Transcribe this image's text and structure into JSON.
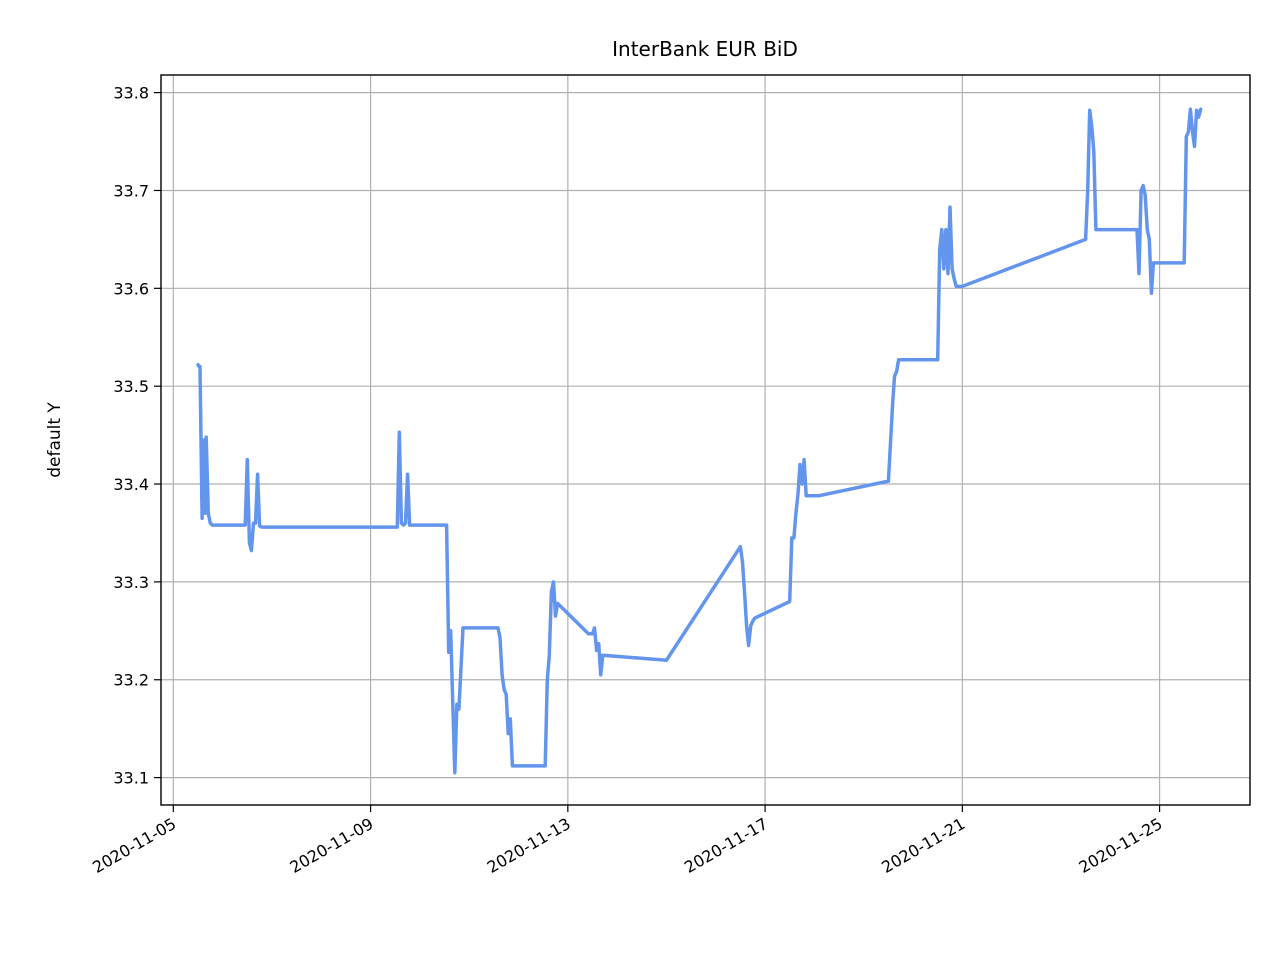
{
  "chart_data": {
    "type": "line",
    "title": "InterBank EUR  BiD",
    "xlabel": "",
    "ylabel": "default Y",
    "x_type": "date",
    "xlim": [
      "2020-11-04T18:00",
      "2020-11-26T20:00"
    ],
    "ylim": [
      33.072,
      33.818
    ],
    "x_ticks": [
      "2020-11-05",
      "2020-11-09",
      "2020-11-13",
      "2020-11-17",
      "2020-11-21",
      "2020-11-25"
    ],
    "y_ticks": [
      33.1,
      33.2,
      33.3,
      33.4,
      33.5,
      33.6,
      33.7,
      33.8
    ],
    "y_tick_labels": [
      "33.1",
      "33.2",
      "33.3",
      "33.4",
      "33.5",
      "33.6",
      "33.7",
      "33.8"
    ],
    "grid": true,
    "color": "#6495ed",
    "series": [
      {
        "x": [
          "2020-11-05T12:00",
          "2020-11-05T12:30",
          "2020-11-05T13:00",
          "2020-11-05T14:00",
          "2020-11-05T15:00",
          "2020-11-05T15:30",
          "2020-11-05T16:00",
          "2020-11-05T17:00",
          "2020-11-05T18:00",
          "2020-11-05T19:00",
          "2020-11-05T20:00",
          "2020-11-06T10:00",
          "2020-11-06T11:00",
          "2020-11-06T12:00",
          "2020-11-06T13:00",
          "2020-11-06T14:00",
          "2020-11-06T15:00",
          "2020-11-06T16:00",
          "2020-11-06T17:00",
          "2020-11-06T18:00",
          "2020-11-06T19:00",
          "2020-11-06T20:00",
          "2020-11-09T12:00",
          "2020-11-09T13:00",
          "2020-11-09T14:00",
          "2020-11-09T15:00",
          "2020-11-09T16:00",
          "2020-11-09T17:00",
          "2020-11-09T18:00",
          "2020-11-09T19:00",
          "2020-11-09T20:00",
          "2020-11-10T12:00",
          "2020-11-10T13:00",
          "2020-11-10T14:00",
          "2020-11-10T15:00",
          "2020-11-10T16:00",
          "2020-11-10T17:00",
          "2020-11-10T18:00",
          "2020-11-10T19:00",
          "2020-11-10T21:00",
          "2020-11-11T12:00",
          "2020-11-11T13:00",
          "2020-11-11T14:00",
          "2020-11-11T15:00",
          "2020-11-11T16:00",
          "2020-11-11T17:00",
          "2020-11-11T18:00",
          "2020-11-11T19:00",
          "2020-11-11T20:00",
          "2020-11-11T21:00",
          "2020-11-12T11:00",
          "2020-11-12T12:00",
          "2020-11-12T13:00",
          "2020-11-12T14:00",
          "2020-11-12T15:00",
          "2020-11-12T16:00",
          "2020-11-12T17:00",
          "2020-11-12T18:00",
          "2020-11-12T19:00",
          "2020-11-13T10:00",
          "2020-11-13T11:00",
          "2020-11-13T12:00",
          "2020-11-13T13:00",
          "2020-11-13T14:00",
          "2020-11-13T15:00",
          "2020-11-13T16:00",
          "2020-11-13T17:00",
          "2020-11-15T00:00",
          "2020-11-16T12:00",
          "2020-11-16T13:00",
          "2020-11-16T14:00",
          "2020-11-16T15:00",
          "2020-11-16T16:00",
          "2020-11-16T17:00",
          "2020-11-16T18:00",
          "2020-11-16T19:00",
          "2020-11-17T12:00",
          "2020-11-17T13:00",
          "2020-11-17T14:00",
          "2020-11-17T15:00",
          "2020-11-17T16:00",
          "2020-11-17T17:00",
          "2020-11-17T18:00",
          "2020-11-17T19:00",
          "2020-11-17T20:00",
          "2020-11-18T02:00",
          "2020-11-19T12:00",
          "2020-11-19T13:00",
          "2020-11-19T14:00",
          "2020-11-19T15:00",
          "2020-11-19T16:00",
          "2020-11-19T17:00",
          "2020-11-20T12:00",
          "2020-11-20T13:00",
          "2020-11-20T14:00",
          "2020-11-20T15:00",
          "2020-11-20T16:00",
          "2020-11-20T17:00",
          "2020-11-20T18:00",
          "2020-11-20T19:00",
          "2020-11-20T20:00",
          "2020-11-20T21:00",
          "2020-11-21T00:00",
          "2020-11-23T12:00",
          "2020-11-23T13:00",
          "2020-11-23T14:00",
          "2020-11-23T15:00",
          "2020-11-23T16:00",
          "2020-11-23T17:00",
          "2020-11-23T18:00",
          "2020-11-24T12:00",
          "2020-11-24T13:00",
          "2020-11-24T14:00",
          "2020-11-24T15:00",
          "2020-11-24T16:00",
          "2020-11-24T17:00",
          "2020-11-24T18:00",
          "2020-11-24T19:00",
          "2020-11-24T20:00",
          "2020-11-24T21:00",
          "2020-11-25T12:00",
          "2020-11-25T13:00",
          "2020-11-25T14:00",
          "2020-11-25T15:00",
          "2020-11-25T16:00",
          "2020-11-25T17:00",
          "2020-11-25T18:00",
          "2020-11-25T19:00",
          "2020-11-25T20:00"
        ],
        "y": [
          33.522,
          33.52,
          33.52,
          33.365,
          33.445,
          33.37,
          33.448,
          33.37,
          33.36,
          33.358,
          33.358,
          33.358,
          33.358,
          33.425,
          33.34,
          33.332,
          33.36,
          33.36,
          33.41,
          33.357,
          33.356,
          33.356,
          33.356,
          33.356,
          33.453,
          33.36,
          33.358,
          33.36,
          33.41,
          33.358,
          33.358,
          33.358,
          33.358,
          33.228,
          33.25,
          33.175,
          33.105,
          33.175,
          33.17,
          33.253,
          33.253,
          33.253,
          33.253,
          33.243,
          33.205,
          33.19,
          33.185,
          33.145,
          33.16,
          33.112,
          33.112,
          33.112,
          33.112,
          33.2,
          33.225,
          33.29,
          33.3,
          33.265,
          33.278,
          33.247,
          33.247,
          33.247,
          33.253,
          33.23,
          33.237,
          33.205,
          33.225,
          33.22,
          33.336,
          33.32,
          33.29,
          33.255,
          33.235,
          33.255,
          33.26,
          33.263,
          33.28,
          33.345,
          33.345,
          33.37,
          33.39,
          33.42,
          33.4,
          33.425,
          33.388,
          33.388,
          33.403,
          33.44,
          33.48,
          33.51,
          33.515,
          33.527,
          33.527,
          33.64,
          33.66,
          33.62,
          33.66,
          33.615,
          33.683,
          33.62,
          33.61,
          33.602,
          33.602,
          33.65,
          33.7,
          33.782,
          33.765,
          33.74,
          33.66,
          33.66,
          33.66,
          33.66,
          33.615,
          33.7,
          33.705,
          33.695,
          33.66,
          33.65,
          33.595,
          33.626,
          33.626,
          33.755,
          33.76,
          33.783,
          33.76,
          33.745,
          33.782,
          33.775,
          33.783
        ]
      }
    ]
  }
}
